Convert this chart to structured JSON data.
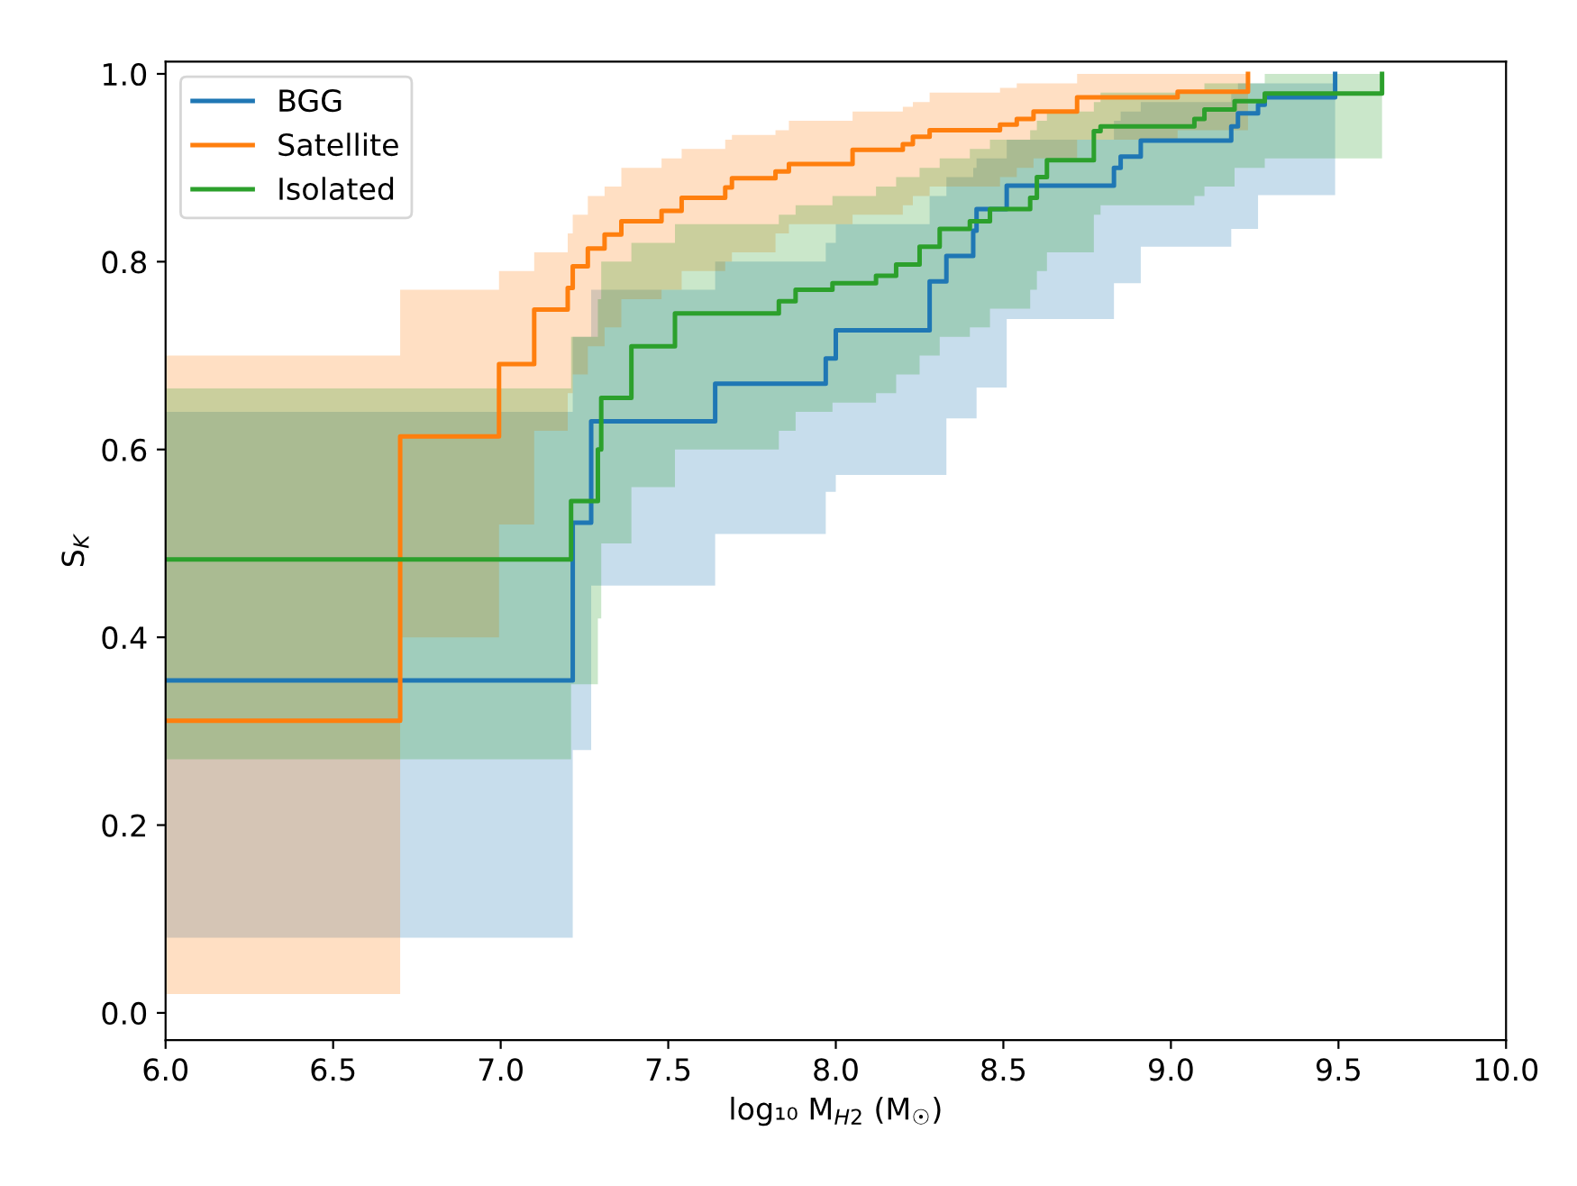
{
  "chart_data": {
    "type": "step",
    "xlabel": "log₁₀ M$_{H2}$ (M$_{☉}$)",
    "ylabel": "S$_{K}$",
    "xlim": [
      6,
      10
    ],
    "ylim": [
      -0.029,
      1.013
    ],
    "xticks": [
      {
        "value": 6,
        "label": "6.0"
      },
      {
        "value": 6.5,
        "label": "6.5"
      },
      {
        "value": 7,
        "label": "7.0"
      },
      {
        "value": 7.5,
        "label": "7.5"
      },
      {
        "value": 8,
        "label": "8.0"
      },
      {
        "value": 8.5,
        "label": "8.5"
      },
      {
        "value": 9,
        "label": "9.0"
      },
      {
        "value": 9.5,
        "label": "9.5"
      },
      {
        "value": 10,
        "label": "10.0"
      }
    ],
    "yticks": [
      {
        "value": 0,
        "label": "0.0"
      },
      {
        "value": 0.2,
        "label": "0.2"
      },
      {
        "value": 0.4,
        "label": "0.4"
      },
      {
        "value": 0.6,
        "label": "0.6"
      },
      {
        "value": 0.8,
        "label": "0.8"
      },
      {
        "value": 1,
        "label": "1.0"
      }
    ],
    "legend": "top left",
    "grid": false,
    "series": [
      {
        "name": "BGG",
        "color": "#1f77b4",
        "x": [
          6.0,
          7.215,
          7.27,
          7.64,
          7.97,
          8.0,
          8.28,
          8.33,
          8.41,
          8.42,
          8.51,
          8.83,
          8.85,
          8.91,
          9.18,
          9.2,
          9.26,
          9.28,
          9.49
        ],
        "values": [
          0.354,
          0.522,
          0.63,
          0.67,
          0.697,
          0.727,
          0.779,
          0.806,
          0.833,
          0.856,
          0.881,
          0.9,
          0.912,
          0.929,
          0.944,
          0.958,
          0.967,
          0.975,
          1.0
        ],
        "lower": [
          0.08,
          0.28,
          0.455,
          0.51,
          0.555,
          0.573,
          0.573,
          0.633,
          0.633,
          0.666,
          0.739,
          0.777,
          0.777,
          0.816,
          0.835,
          0.835,
          0.871,
          0.871,
          0.895
        ],
        "upper": [
          0.64,
          0.72,
          0.77,
          0.8,
          0.82,
          0.84,
          0.87,
          0.89,
          0.9,
          0.91,
          0.93,
          0.95,
          0.96,
          0.97,
          0.98,
          0.99,
          0.99,
          0.99,
          1.0
        ]
      },
      {
        "name": "Satellite",
        "color": "#ff7f0e",
        "x": [
          6.0,
          6.7,
          6.995,
          7.1,
          7.2,
          7.215,
          7.26,
          7.31,
          7.36,
          7.48,
          7.54,
          7.67,
          7.69,
          7.82,
          7.86,
          8.05,
          8.2,
          8.23,
          8.28,
          8.49,
          8.54,
          8.59,
          8.72,
          9.02,
          9.23
        ],
        "values": [
          0.311,
          0.614,
          0.691,
          0.749,
          0.772,
          0.795,
          0.814,
          0.829,
          0.843,
          0.854,
          0.868,
          0.879,
          0.889,
          0.896,
          0.904,
          0.919,
          0.925,
          0.933,
          0.94,
          0.946,
          0.952,
          0.96,
          0.975,
          0.981,
          1.0
        ],
        "lower": [
          0.02,
          0.4,
          0.52,
          0.62,
          0.66,
          0.68,
          0.71,
          0.73,
          0.76,
          0.77,
          0.79,
          0.8,
          0.81,
          0.83,
          0.84,
          0.85,
          0.86,
          0.87,
          0.88,
          0.89,
          0.9,
          0.91,
          0.93,
          0.94,
          0.96
        ],
        "upper": [
          0.7,
          0.77,
          0.79,
          0.81,
          0.83,
          0.85,
          0.87,
          0.88,
          0.9,
          0.91,
          0.92,
          0.93,
          0.935,
          0.94,
          0.95,
          0.96,
          0.965,
          0.97,
          0.98,
          0.985,
          0.99,
          0.99,
          1.0,
          1.0,
          1.0
        ]
      },
      {
        "name": "Isolated",
        "color": "#2ca02c",
        "x": [
          6.0,
          7.21,
          7.29,
          7.3,
          7.39,
          7.52,
          7.83,
          7.88,
          7.99,
          8.12,
          8.18,
          8.25,
          8.31,
          8.4,
          8.46,
          8.58,
          8.6,
          8.63,
          8.77,
          8.79,
          9.07,
          9.1,
          9.19,
          9.28,
          9.63
        ],
        "values": [
          0.483,
          0.545,
          0.6,
          0.655,
          0.71,
          0.745,
          0.758,
          0.77,
          0.777,
          0.785,
          0.797,
          0.816,
          0.835,
          0.843,
          0.856,
          0.868,
          0.89,
          0.908,
          0.939,
          0.944,
          0.952,
          0.962,
          0.971,
          0.979,
          1.0
        ],
        "lower": [
          0.27,
          0.35,
          0.42,
          0.5,
          0.56,
          0.6,
          0.62,
          0.64,
          0.65,
          0.66,
          0.68,
          0.7,
          0.72,
          0.73,
          0.75,
          0.77,
          0.79,
          0.81,
          0.85,
          0.86,
          0.87,
          0.88,
          0.9,
          0.91,
          0.94
        ],
        "upper": [
          0.665,
          0.72,
          0.76,
          0.8,
          0.82,
          0.84,
          0.85,
          0.86,
          0.87,
          0.88,
          0.89,
          0.9,
          0.91,
          0.92,
          0.93,
          0.94,
          0.95,
          0.96,
          0.97,
          0.98,
          0.98,
          0.99,
          0.99,
          1.0,
          1.0
        ]
      }
    ]
  }
}
